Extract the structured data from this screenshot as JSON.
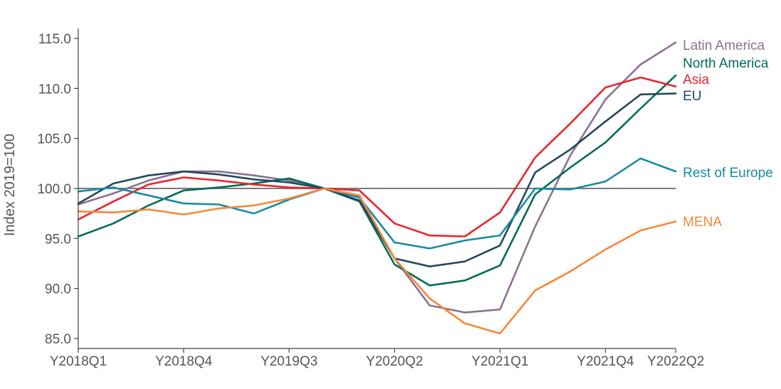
{
  "chart_data": {
    "type": "line",
    "ylabel": "Index 2019=100",
    "xlabel": "",
    "ylim": [
      84,
      116
    ],
    "yticks": [
      85,
      90,
      95,
      100,
      105,
      110,
      115
    ],
    "ytick_labels": [
      "85.0",
      "90.0",
      "95.0",
      "100.0",
      "105.0",
      "110.0",
      "115.0"
    ],
    "x": [
      "Y2018Q1",
      "Y2018Q2",
      "Y2018Q3",
      "Y2018Q4",
      "Y2019Q1",
      "Y2019Q2",
      "Y2019Q3",
      "Y2019Q4",
      "Y2020Q1",
      "Y2020Q2",
      "Y2020Q3",
      "Y2020Q4",
      "Y2021Q1",
      "Y2021Q2",
      "Y2021Q3",
      "Y2021Q4",
      "Y2022Q1",
      "Y2022Q2"
    ],
    "xtick_labels": [
      "Y2018Q1",
      "Y2018Q4",
      "Y2019Q3",
      "Y2020Q2",
      "Y2021Q1",
      "Y2021Q4",
      "Y2022Q2"
    ],
    "reference_line": 100,
    "legend": "inline-right",
    "series": [
      {
        "name": "Latin America",
        "color": "#8c7191",
        "values": [
          98.4,
          99.5,
          100.8,
          101.7,
          101.7,
          101.3,
          100.8,
          100.0,
          99.2,
          93.0,
          88.3,
          87.6,
          87.9,
          96.2,
          103.3,
          108.9,
          112.4,
          114.6
        ]
      },
      {
        "name": "North America",
        "color": "#006b54",
        "values": [
          95.2,
          96.5,
          98.3,
          99.8,
          100.1,
          100.5,
          101.0,
          100.0,
          98.7,
          92.4,
          90.3,
          90.8,
          92.3,
          99.4,
          102.1,
          104.6,
          108.0,
          111.3
        ]
      },
      {
        "name": "Asia",
        "color": "#e8252e",
        "values": [
          96.9,
          98.7,
          100.4,
          101.1,
          100.8,
          100.4,
          100.1,
          100.0,
          99.8,
          96.5,
          95.3,
          95.2,
          97.6,
          103.1,
          106.5,
          110.1,
          111.1,
          110.2
        ]
      },
      {
        "name": "EU",
        "color": "#24495f",
        "values": [
          98.5,
          100.5,
          101.3,
          101.7,
          101.4,
          100.9,
          100.6,
          100.0,
          98.8,
          93.0,
          92.2,
          92.7,
          94.3,
          101.6,
          103.9,
          106.7,
          109.4,
          109.5
        ]
      },
      {
        "name": "Rest of Europe",
        "color": "#1a8aa1",
        "values": [
          99.7,
          100.1,
          99.3,
          98.5,
          98.4,
          97.5,
          98.9,
          100.0,
          99.1,
          94.6,
          94.0,
          94.8,
          95.3,
          100.0,
          99.9,
          100.7,
          103.0,
          101.7
        ]
      },
      {
        "name": "MENA",
        "color": "#f5883a",
        "values": [
          97.7,
          97.6,
          97.9,
          97.4,
          98.0,
          98.3,
          99.0,
          100.0,
          99.3,
          93.0,
          89.0,
          86.5,
          85.5,
          89.8,
          91.7,
          93.9,
          95.8,
          96.7
        ]
      }
    ]
  }
}
